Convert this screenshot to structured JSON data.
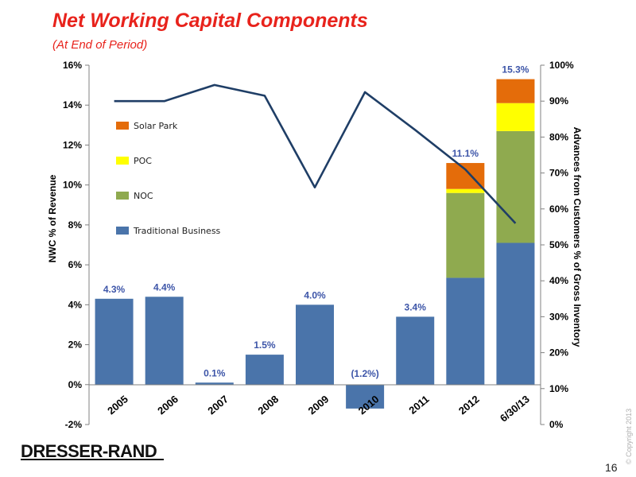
{
  "header": {
    "title": "Net Working Capital Components",
    "subtitle": "(At End of Period)"
  },
  "chart_data": {
    "type": "bar",
    "stacked": true,
    "categories": [
      "2005",
      "2006",
      "2007",
      "2008",
      "2009",
      "2010",
      "2011",
      "2012",
      "6/30/13"
    ],
    "series": [
      {
        "name": "Traditional Business",
        "color": "#4a74aa",
        "values": [
          4.3,
          4.4,
          0.1,
          1.5,
          4.0,
          -1.2,
          3.4,
          5.35,
          7.1
        ]
      },
      {
        "name": "NOC",
        "color": "#8faa4f",
        "values": [
          0,
          0,
          0,
          0,
          0,
          0,
          0,
          4.25,
          5.6
        ]
      },
      {
        "name": "POC",
        "color": "#ffff00",
        "values": [
          0,
          0,
          0,
          0,
          0,
          0,
          0,
          0.2,
          1.4
        ]
      },
      {
        "name": "Solar Park",
        "color": "#e46c0a",
        "values": [
          0,
          0,
          0,
          0,
          0,
          0,
          0,
          1.3,
          1.2
        ]
      }
    ],
    "line": {
      "name": "Advances from Customers % of Gross Inventory",
      "color": "#1f3e66",
      "axis": "right",
      "values": [
        90,
        90,
        94.5,
        91.5,
        66,
        92.5,
        82,
        71,
        56
      ]
    },
    "data_labels": [
      "4.3%",
      "4.4%",
      "0.1%",
      "1.5%",
      "4.0%",
      "(1.2%)",
      "3.4%",
      "11.1%",
      "15.3%"
    ],
    "label_color": "#3d55a8",
    "y_left": {
      "label": "NWC % of Revenue",
      "min": -2,
      "max": 16,
      "step": 2,
      "ticks": [
        "-2%",
        "0%",
        "2%",
        "4%",
        "6%",
        "8%",
        "10%",
        "12%",
        "14%",
        "16%"
      ]
    },
    "y_right": {
      "label": "Advances from Customers % of Gross Inventory",
      "min": 0,
      "max": 100,
      "step": 10,
      "ticks": [
        "0%",
        "10%",
        "20%",
        "30%",
        "40%",
        "50%",
        "60%",
        "70%",
        "80%",
        "90%",
        "100%"
      ]
    },
    "legend": {
      "placement": "upper-left-inside",
      "entries": [
        "Solar Park",
        "POC",
        "NOC",
        "Traditional Business"
      ]
    },
    "grid": false
  },
  "footer": {
    "logo": "DRESSER-RAND",
    "copyright": "© Copyright 2013",
    "page_number": "16"
  }
}
